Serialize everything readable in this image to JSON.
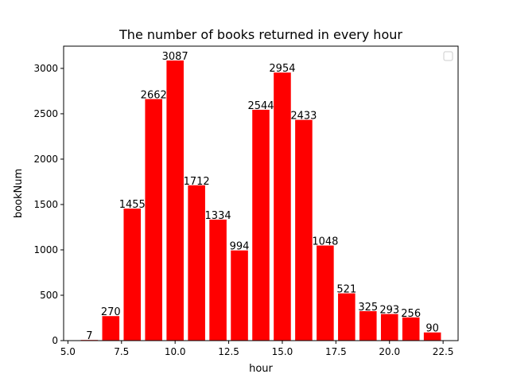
{
  "chart_data": {
    "type": "bar",
    "title": "The number of books returned in every hour",
    "xlabel": "hour",
    "ylabel": "bookNum",
    "x": [
      6,
      7,
      8,
      9,
      10,
      11,
      12,
      13,
      14,
      15,
      16,
      17,
      18,
      19,
      20,
      21,
      22
    ],
    "values": [
      7,
      270,
      1455,
      2662,
      3087,
      1712,
      1334,
      994,
      2544,
      2954,
      2433,
      1048,
      521,
      325,
      293,
      256,
      90
    ],
    "xlim": [
      4.8,
      23.2
    ],
    "ylim": [
      0,
      3245
    ],
    "xticks": [
      5.0,
      7.5,
      10.0,
      12.5,
      15.0,
      17.5,
      20.0,
      22.5
    ],
    "xtick_labels": [
      "5.0",
      "7.5",
      "10.0",
      "12.5",
      "15.0",
      "17.5",
      "20.0",
      "22.5"
    ],
    "yticks": [
      0,
      500,
      1000,
      1500,
      2000,
      2500,
      3000
    ],
    "ytick_labels": [
      "0",
      "500",
      "1000",
      "1500",
      "2000",
      "2500",
      "3000"
    ],
    "bar_width": 0.8,
    "bar_color": "#ff0000",
    "grid": false,
    "legend": {
      "position": "top-right",
      "entries": []
    }
  }
}
